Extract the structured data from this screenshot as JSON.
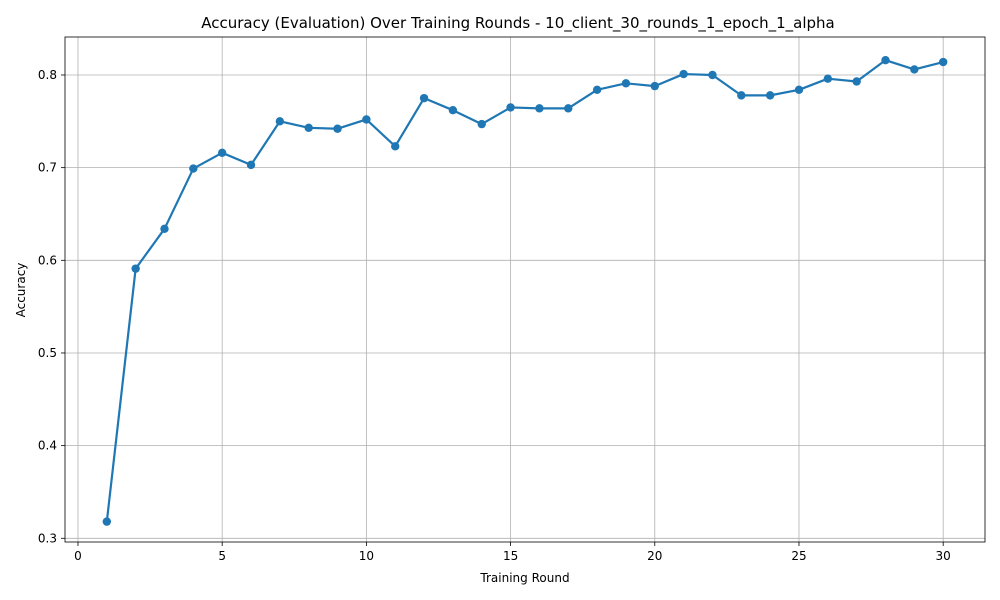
{
  "chart_data": {
    "type": "line",
    "title": "Accuracy (Evaluation) Over Training Rounds - 10_client_30_rounds_1_epoch_1_alpha",
    "xlabel": "Training Round",
    "ylabel": "Accuracy",
    "xlim": [
      -0.45,
      31.45
    ],
    "ylim": [
      0.296,
      0.841
    ],
    "x_ticks": [
      0,
      5,
      10,
      15,
      20,
      25,
      30
    ],
    "x_tick_labels": [
      "0",
      "5",
      "10",
      "15",
      "20",
      "25",
      "30"
    ],
    "y_ticks": [
      0.3,
      0.4,
      0.5,
      0.6,
      0.7,
      0.8
    ],
    "y_tick_labels": [
      "0.3",
      "0.4",
      "0.5",
      "0.6",
      "0.7",
      "0.8"
    ],
    "grid": true,
    "color": "#1f77b4",
    "x": [
      1,
      2,
      3,
      4,
      5,
      6,
      7,
      8,
      9,
      10,
      11,
      12,
      13,
      14,
      15,
      16,
      17,
      18,
      19,
      20,
      21,
      22,
      23,
      24,
      25,
      26,
      27,
      28,
      29,
      30
    ],
    "series": [
      {
        "values": [
          0.318,
          0.591,
          0.634,
          0.699,
          0.716,
          0.703,
          0.75,
          0.743,
          0.742,
          0.752,
          0.723,
          0.775,
          0.762,
          0.747,
          0.765,
          0.764,
          0.764,
          0.784,
          0.791,
          0.788,
          0.801,
          0.8,
          0.778,
          0.778,
          0.784,
          0.796,
          0.793,
          0.816,
          0.806,
          0.814
        ]
      }
    ]
  }
}
